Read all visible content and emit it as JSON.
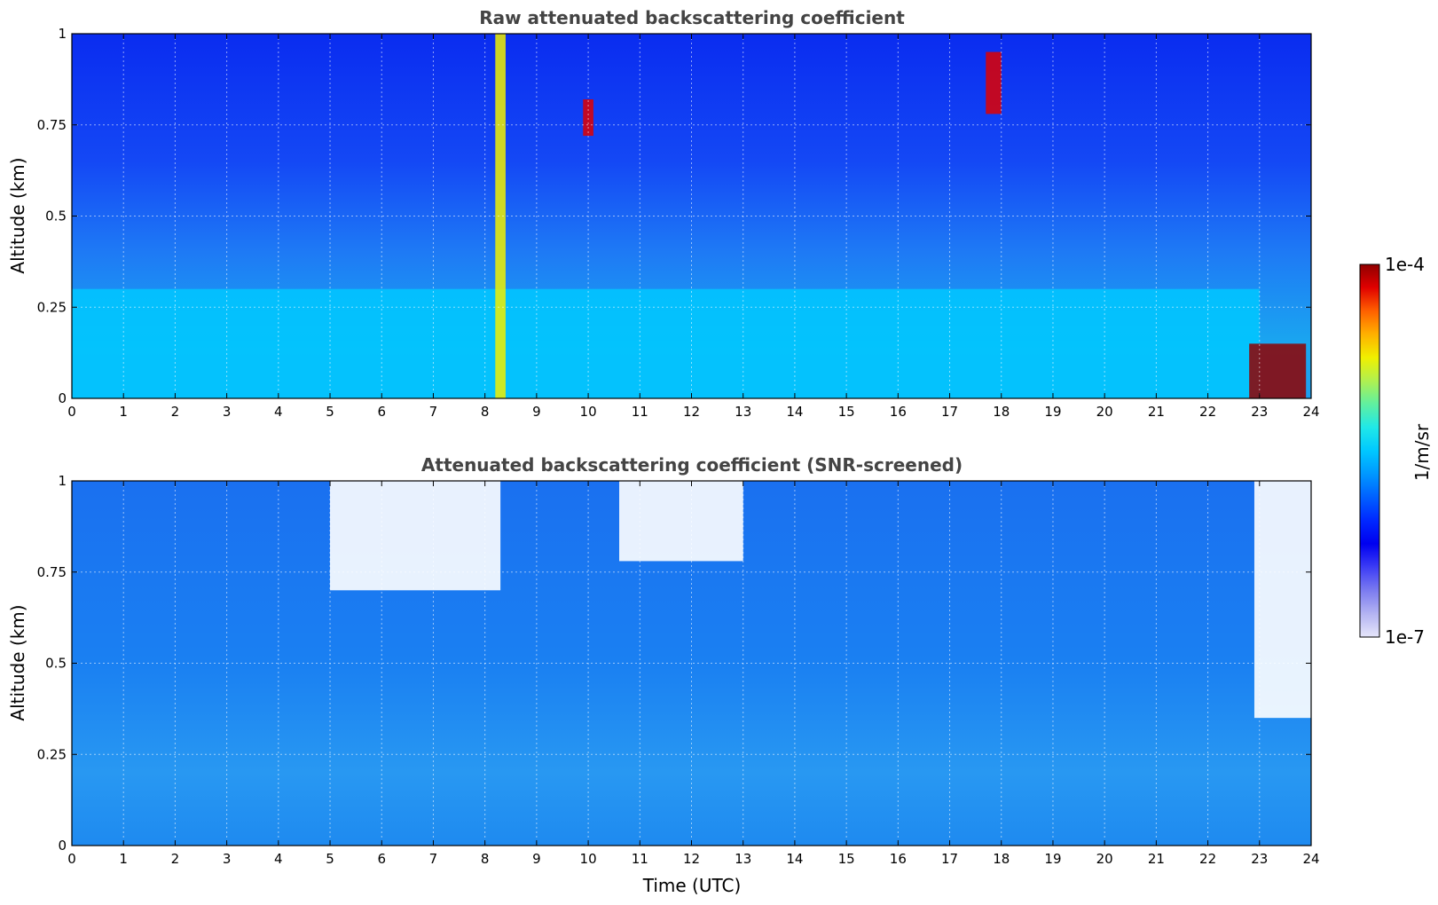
{
  "figure": {
    "xlabel": "Time (UTC)",
    "ylabel": "Altitude (km)"
  },
  "colorbar": {
    "label": "1/m/sr",
    "max_label": "1e-4",
    "min_label": "1e-7",
    "colors": [
      "#e6e6fa",
      "#b3b3f2",
      "#7b7bf0",
      "#3c3cf5",
      "#0000f0",
      "#0028ff",
      "#0060ff",
      "#0098ff",
      "#00c8ff",
      "#20e8e8",
      "#60f0a0",
      "#b0f050",
      "#f0f000",
      "#ffb000",
      "#ff6000",
      "#e00000",
      "#900000"
    ]
  },
  "chart_data": [
    {
      "type": "heatmap",
      "title": "Raw attenuated backscattering coefficient",
      "xlim": [
        0,
        24
      ],
      "ylim": [
        0,
        1
      ],
      "xticks": [
        "0",
        "1",
        "2",
        "3",
        "4",
        "5",
        "6",
        "7",
        "8",
        "9",
        "10",
        "11",
        "12",
        "13",
        "14",
        "15",
        "16",
        "17",
        "18",
        "19",
        "20",
        "21",
        "22",
        "23",
        "24"
      ],
      "yticks": [
        "0",
        "0.25",
        "0.5",
        "0.75",
        "1"
      ],
      "grid": true,
      "color_scale": "log",
      "value_range": [
        1e-07,
        0.0001
      ],
      "features": [
        {
          "label": "boundary-layer aerosol",
          "t": [
            0,
            23
          ],
          "z": [
            0,
            0.3
          ],
          "level": 0.48
        },
        {
          "label": "high-backscatter vertical streak",
          "t": [
            8.2,
            8.4
          ],
          "z": [
            0,
            1
          ],
          "level": 0.78
        },
        {
          "label": "cloud",
          "t": [
            9.9,
            10.1
          ],
          "z": [
            0.72,
            0.82
          ],
          "level": 0.95
        },
        {
          "label": "cloud",
          "t": [
            17.7,
            18.0
          ],
          "z": [
            0.78,
            0.95
          ],
          "level": 0.96
        },
        {
          "label": "surface layer high backscatter",
          "t": [
            22.8,
            23.9
          ],
          "z": [
            0,
            0.15
          ],
          "level": 0.98
        }
      ]
    },
    {
      "type": "heatmap",
      "title": "Attenuated backscattering coefficient (SNR-screened)",
      "xlim": [
        0,
        24
      ],
      "ylim": [
        0,
        1
      ],
      "xticks": [
        "0",
        "1",
        "2",
        "3",
        "4",
        "5",
        "6",
        "7",
        "8",
        "9",
        "10",
        "11",
        "12",
        "13",
        "14",
        "15",
        "16",
        "17",
        "18",
        "19",
        "20",
        "21",
        "22",
        "23",
        "24"
      ],
      "yticks": [
        "0",
        "0.25",
        "0.5",
        "0.75",
        "1"
      ],
      "grid": true,
      "color_scale": "log",
      "value_range": [
        1e-07,
        0.0001
      ],
      "screened_regions": [
        {
          "t": [
            5.0,
            8.3
          ],
          "z": [
            0.7,
            1.0
          ]
        },
        {
          "t": [
            10.6,
            13.0
          ],
          "z": [
            0.78,
            1.0
          ]
        },
        {
          "t": [
            22.9,
            24
          ],
          "z": [
            0.35,
            1.0
          ]
        }
      ]
    }
  ]
}
